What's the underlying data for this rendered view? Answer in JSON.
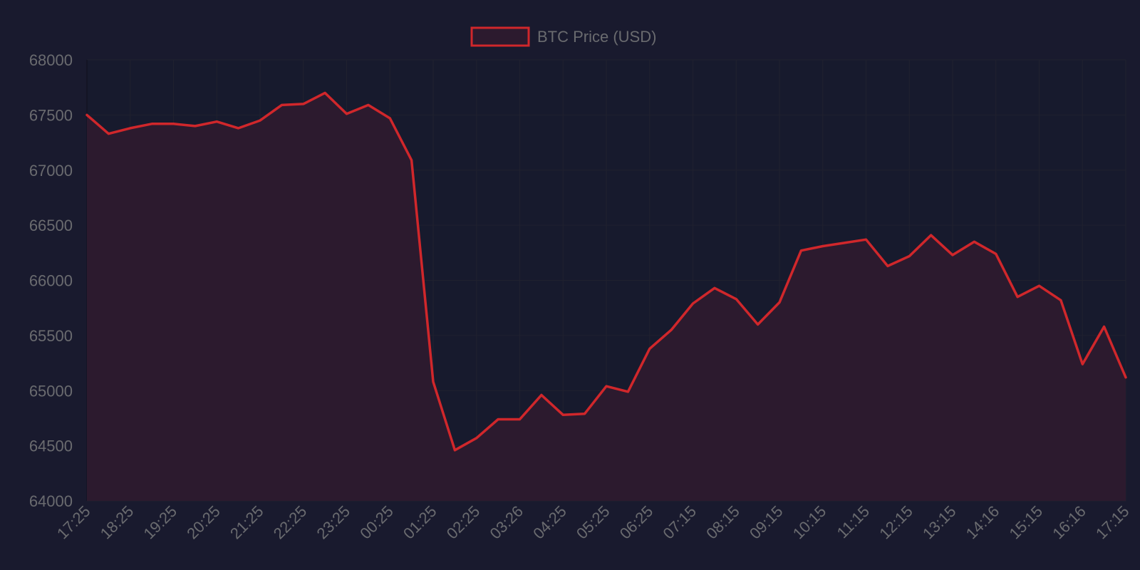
{
  "colors": {
    "background": "#191a2e",
    "plot_background": "#171a2d",
    "line": "#d0272b",
    "fill": "#2c1a2e",
    "grid": "#20212f",
    "text": "#6a6b6f"
  },
  "chart_data": {
    "type": "area",
    "legend": {
      "position": "top-center",
      "label": "BTC Price (USD)"
    },
    "grid": true,
    "ylim": [
      64000,
      68000
    ],
    "y_ticks": [
      "64000",
      "64500",
      "65000",
      "65500",
      "66000",
      "66500",
      "67000",
      "67500",
      "68000"
    ],
    "x_tick_labels": [
      "17:25",
      "18:25",
      "19:25",
      "20:25",
      "21:25",
      "22:25",
      "23:25",
      "00:25",
      "01:25",
      "02:25",
      "03:26",
      "04:25",
      "05:25",
      "06:25",
      "07:15",
      "08:15",
      "09:15",
      "10:15",
      "11:15",
      "12:15",
      "13:15",
      "14:16",
      "15:15",
      "16:16",
      "17:15"
    ],
    "series": [
      {
        "name": "BTC Price (USD)",
        "values": [
          67500,
          67330,
          67380,
          67420,
          67420,
          67400,
          67440,
          67380,
          67450,
          67590,
          67600,
          67700,
          67510,
          67590,
          67470,
          67090,
          65080,
          64460,
          64570,
          64740,
          64740,
          64960,
          64780,
          64790,
          65040,
          64990,
          65380,
          65550,
          65790,
          65930,
          65830,
          65600,
          65800,
          66270,
          66310,
          66340,
          66370,
          66130,
          66220,
          66410,
          66230,
          66350,
          66240,
          65850,
          65950,
          65820,
          65240,
          65580,
          65120
        ]
      }
    ]
  }
}
